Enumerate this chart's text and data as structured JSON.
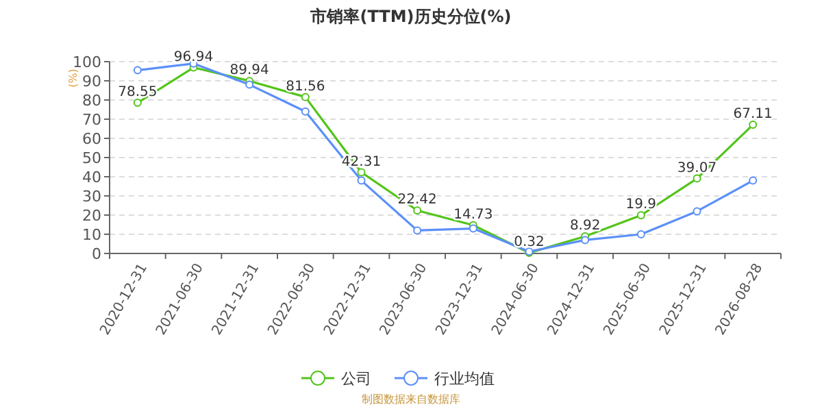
{
  "chart_data": {
    "type": "line",
    "title": "市销率(TTM)历史分位(%)",
    "ylabel": "(%)",
    "categories": [
      "2020-12-31",
      "2021-06-30",
      "2021-12-31",
      "2022-06-30",
      "2022-12-31",
      "2023-06-30",
      "2023-12-31",
      "2024-06-30",
      "2024-12-31",
      "2025-06-30",
      "2025-12-31",
      "2026-08-28"
    ],
    "series": [
      {
        "name": "公司",
        "color": "#52c41a",
        "values": [
          78.55,
          96.94,
          89.94,
          81.56,
          42.31,
          22.42,
          14.73,
          0.32,
          8.92,
          19.9,
          39.07,
          67.11
        ],
        "value_labels": [
          "78.55",
          "96.94",
          "89.94",
          "81.56",
          "42.31",
          "22.42",
          "14.73",
          "0.32",
          "8.92",
          "19.9",
          "39.07",
          "67.11"
        ]
      },
      {
        "name": "行业均值",
        "color": "#5b8ff9",
        "values": [
          95.5,
          99,
          88,
          74,
          38,
          12,
          13,
          1,
          7,
          10,
          22,
          38
        ]
      }
    ],
    "ylim": [
      0,
      100
    ],
    "yticks": [
      0,
      10,
      20,
      30,
      40,
      50,
      60,
      70,
      80,
      90,
      100
    ],
    "grid": "y",
    "legend": "bottom",
    "marker": "circle",
    "line_style": "solid",
    "annotations": [
      "制图数据来自数据库"
    ]
  }
}
